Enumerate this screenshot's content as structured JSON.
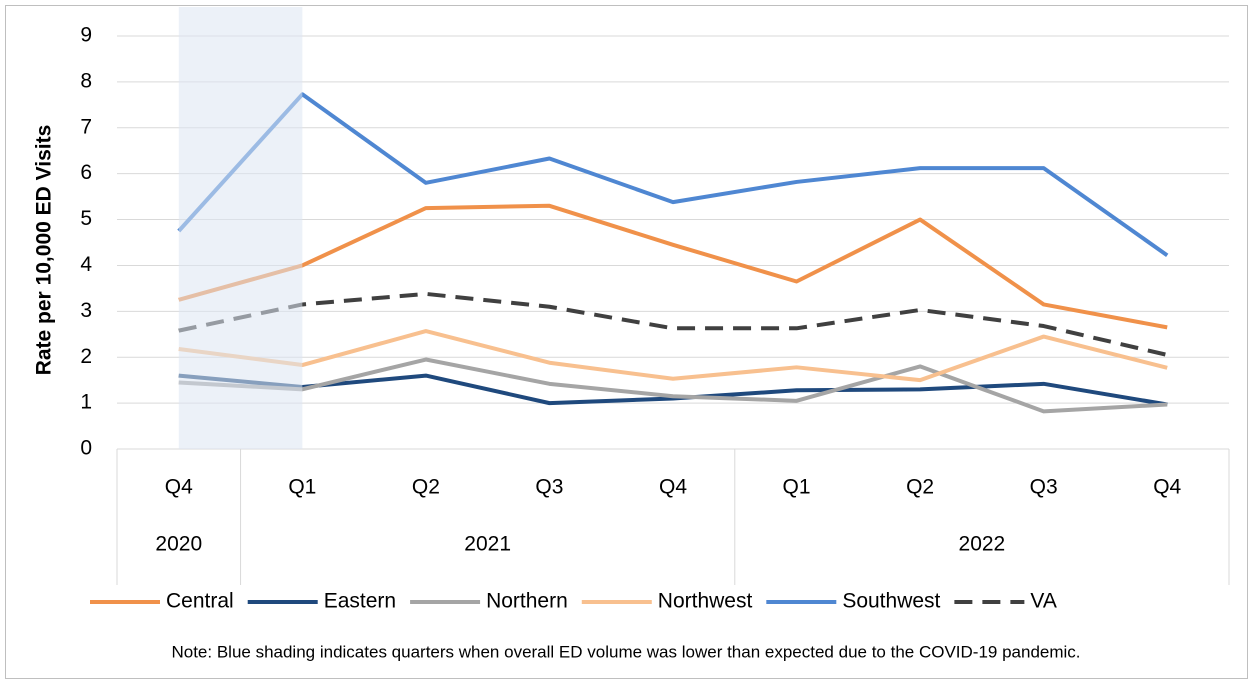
{
  "chart_data": {
    "type": "line",
    "y_label": "Rate per 10,000 ED Visits",
    "categories": [
      "Q4",
      "Q1",
      "Q2",
      "Q3",
      "Q4",
      "Q1",
      "Q2",
      "Q3",
      "Q4"
    ],
    "category_groups": [
      {
        "label": "2020",
        "span": 1
      },
      {
        "label": "2021",
        "span": 4
      },
      {
        "label": "2022",
        "span": 4
      }
    ],
    "series": [
      {
        "name": "Central",
        "color": "#f0914a",
        "values": [
          3.25,
          4.0,
          5.25,
          5.3,
          4.45,
          3.65,
          5.0,
          3.15,
          2.65
        ]
      },
      {
        "name": "Eastern",
        "color": "#1f497d",
        "values": [
          1.6,
          1.35,
          1.6,
          1.0,
          1.1,
          1.28,
          1.3,
          1.42,
          0.97
        ]
      },
      {
        "name": "Northern",
        "color": "#a5a5a5",
        "values": [
          1.45,
          1.3,
          1.95,
          1.42,
          1.15,
          1.05,
          1.8,
          0.82,
          0.97
        ]
      },
      {
        "name": "Northwest",
        "color": "#f8c08f",
        "values": [
          2.18,
          1.83,
          2.57,
          1.88,
          1.53,
          1.78,
          1.5,
          2.45,
          1.77
        ]
      },
      {
        "name": "Southwest",
        "color": "#4f87d2",
        "values": [
          4.75,
          7.73,
          5.8,
          6.33,
          5.38,
          5.82,
          6.12,
          6.12,
          4.22
        ]
      },
      {
        "name": "VA",
        "color": "#404040",
        "dashed": true,
        "values": [
          2.58,
          3.15,
          3.38,
          3.1,
          2.63,
          2.63,
          3.03,
          2.68,
          2.05
        ]
      }
    ],
    "ylim": [
      0,
      9
    ],
    "yticks": [
      0,
      1,
      2,
      3,
      4,
      5,
      6,
      7,
      8,
      9
    ],
    "grid": true,
    "shaded_categories": [
      0,
      1
    ],
    "shade_color": "#dde6f2",
    "legend": "bottom",
    "note": "Note: Blue shading indicates quarters when overall ED volume was lower than expected due to the COVID-19 pandemic."
  }
}
